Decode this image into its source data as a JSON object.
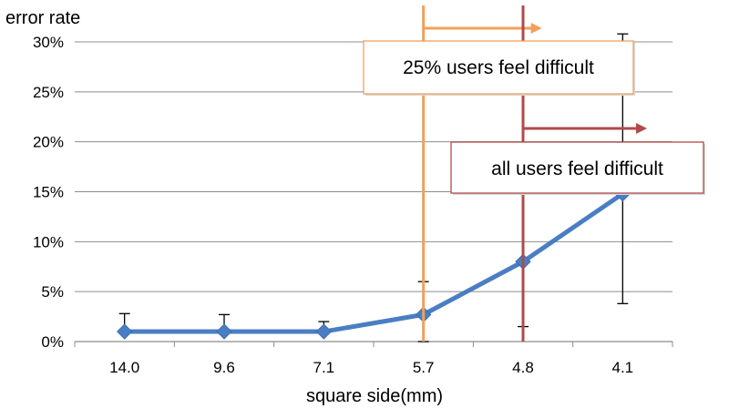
{
  "chart_data": {
    "type": "line",
    "ylabel": "error rate",
    "xlabel": "square side(mm)",
    "categories": [
      "14.0",
      "9.6",
      "7.1",
      "5.7",
      "4.8",
      "4.1"
    ],
    "ylim": [
      0,
      30
    ],
    "yticks": [
      "0%",
      "5%",
      "10%",
      "15%",
      "20%",
      "25%",
      "30%"
    ],
    "grid": true,
    "series": [
      {
        "values": [
          1,
          1,
          1,
          2.7,
          8,
          14.8
        ],
        "error_plus": [
          1.8,
          1.7,
          1.0,
          3.3,
          7.0,
          16.0
        ],
        "error_minus": [
          0,
          0,
          0,
          2.7,
          6.5,
          11.0
        ],
        "color": "#4a7ec4"
      }
    ],
    "annotations": [
      {
        "text": "25% users feel difficult",
        "at_category": 3.5,
        "color": "#f0a05a",
        "box_border": "#f0a05a"
      },
      {
        "text": "all users feel difficult",
        "at_category": 4.5,
        "color": "#b04a4a",
        "box_border": "#b04a4a"
      }
    ]
  }
}
